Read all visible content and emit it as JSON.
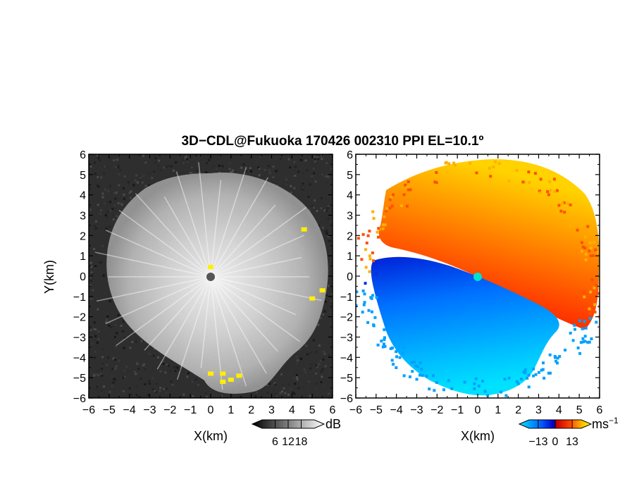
{
  "title": "3D−CDL@Fukuoka 170426 002310 PPI EL=10.1º",
  "chart_data": [
    {
      "type": "heatmap",
      "field": "reflectivity",
      "xlabel": "X(km)",
      "ylabel": "Y(km)",
      "xlim": [
        -6,
        6
      ],
      "ylim": [
        -6,
        6
      ],
      "xticks": [
        "−6",
        "−5",
        "−4",
        "−3",
        "−2",
        "−1",
        "0",
        "1",
        "2",
        "3",
        "4",
        "5",
        "6"
      ],
      "yticks": [
        "6",
        "5",
        "4",
        "3",
        "2",
        "1",
        "0",
        "−1",
        "−2",
        "−3",
        "−4",
        "−5",
        "−6"
      ],
      "colorbar": {
        "unit": "dB",
        "ticks": [
          "6",
          "12",
          "18"
        ],
        "range": [
          0,
          24
        ],
        "palette": [
          "#000000",
          "#ffffff"
        ]
      },
      "highlights": [
        {
          "x": 0.0,
          "y": 0.45
        },
        {
          "x": 5.5,
          "y": -0.7
        },
        {
          "x": 5.0,
          "y": -1.1
        },
        {
          "x": 4.6,
          "y": 2.3
        },
        {
          "x": 0.0,
          "y": -4.8
        },
        {
          "x": 0.6,
          "y": -4.8
        },
        {
          "x": 0.6,
          "y": -5.2
        },
        {
          "x": 1.0,
          "y": -5.1
        },
        {
          "x": 1.4,
          "y": -4.9
        }
      ]
    },
    {
      "type": "heatmap",
      "field": "doppler_velocity",
      "xlabel": "X(km)",
      "xlim": [
        -6,
        6
      ],
      "ylim": [
        -6,
        6
      ],
      "xticks": [
        "−6",
        "−5",
        "−4",
        "−3",
        "−2",
        "−1",
        "0",
        "1",
        "2",
        "3",
        "4",
        "5",
        "6"
      ],
      "yticks": [
        "6",
        "5",
        "4",
        "3",
        "2",
        "1",
        "0",
        "−1",
        "−2",
        "−3",
        "−4",
        "−5",
        "−6"
      ],
      "colorbar": {
        "unit": "ms",
        "unit_superscript": "−1",
        "ticks": [
          "−13",
          "0",
          "13"
        ],
        "range": [
          -20,
          20
        ],
        "palette": [
          "#00e5ff",
          "#0060ff",
          "#0000c8",
          "#c80000",
          "#ff4000",
          "#ffc000",
          "#ffff00"
        ]
      }
    }
  ]
}
